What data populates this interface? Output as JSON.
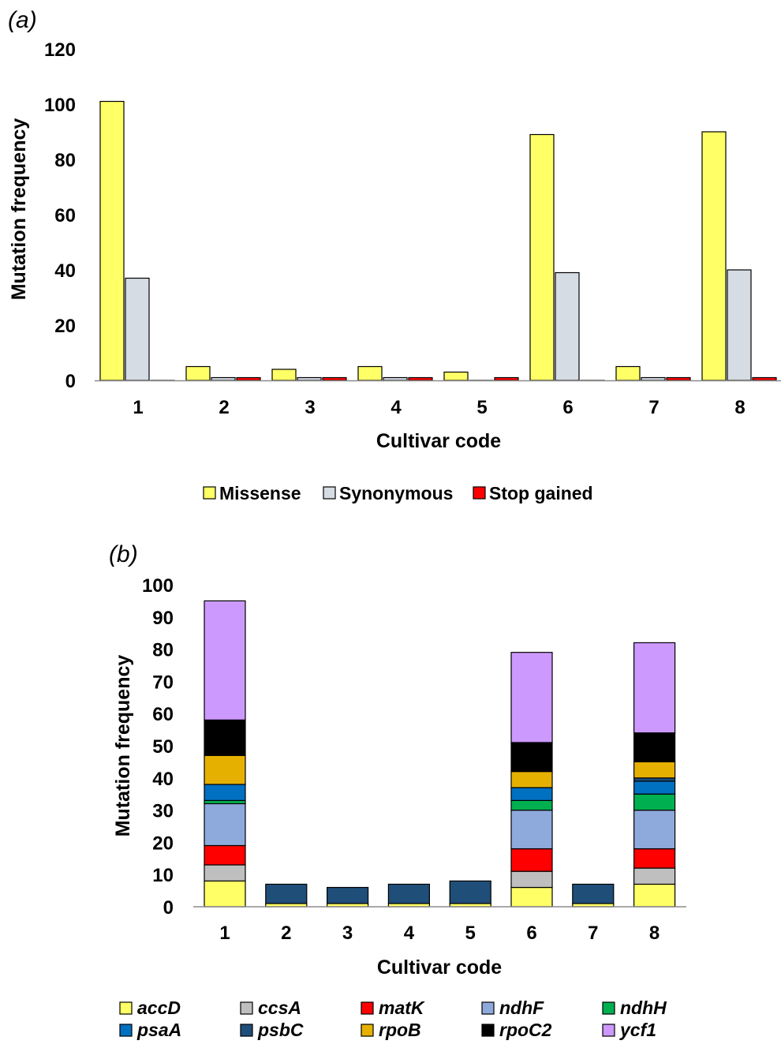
{
  "chart_data": [
    {
      "panel": "(a)",
      "panel_letter": "a",
      "type": "bar",
      "xlabel": "Cultivar code",
      "ylabel": "Mutation frequency",
      "ylim": [
        0,
        120
      ],
      "yticks": [
        0,
        20,
        40,
        60,
        80,
        100,
        120
      ],
      "categories": [
        "1",
        "2",
        "3",
        "4",
        "5",
        "6",
        "7",
        "8"
      ],
      "legend_position": "bottom",
      "series": [
        {
          "name": "Missense",
          "color": "#FFFF66",
          "values": [
            101,
            5,
            4,
            5,
            3,
            89,
            5,
            90
          ]
        },
        {
          "name": "Synonymous",
          "color": "#D6DCE4",
          "values": [
            37,
            1,
            1,
            1,
            0,
            39,
            1,
            40
          ]
        },
        {
          "name": "Stop gained",
          "color": "#FF0000",
          "values": [
            0,
            1,
            1,
            1,
            1,
            0,
            1,
            1
          ]
        }
      ]
    },
    {
      "panel": "(b)",
      "panel_letter": "b",
      "type": "bar",
      "stacked": true,
      "xlabel": "Cultivar code",
      "ylabel": "Mutation frequency",
      "ylim": [
        0,
        100
      ],
      "yticks": [
        0,
        10,
        20,
        30,
        40,
        50,
        60,
        70,
        80,
        90,
        100
      ],
      "categories": [
        "1",
        "2",
        "3",
        "4",
        "5",
        "6",
        "7",
        "8"
      ],
      "legend_position": "bottom",
      "series": [
        {
          "name": "accD",
          "color": "#FFFF66",
          "values": [
            8,
            1,
            1,
            1,
            1,
            6,
            1,
            7
          ]
        },
        {
          "name": "ccsA",
          "color": "#BFBFBF",
          "values": [
            5,
            0,
            0,
            0,
            0,
            5,
            0,
            5
          ]
        },
        {
          "name": "matK",
          "color": "#FF0000",
          "values": [
            6,
            0,
            0,
            0,
            0,
            7,
            0,
            6
          ]
        },
        {
          "name": "ndhF",
          "color": "#8EA9DB",
          "values": [
            13,
            0,
            0,
            0,
            0,
            12,
            0,
            12
          ]
        },
        {
          "name": "ndhH",
          "color": "#00B050",
          "values": [
            1,
            0,
            0,
            0,
            0,
            3,
            0,
            5
          ]
        },
        {
          "name": "psaA",
          "color": "#0070C0",
          "values": [
            5,
            0,
            0,
            0,
            0,
            4,
            0,
            4
          ]
        },
        {
          "name": "psbC",
          "color": "#1F4E79",
          "values": [
            0,
            6,
            5,
            6,
            7,
            0,
            6,
            1
          ]
        },
        {
          "name": "rpoB",
          "color": "#E6B000",
          "values": [
            9,
            0,
            0,
            0,
            0,
            5,
            0,
            5
          ]
        },
        {
          "name": "rpoC2",
          "color": "#000000",
          "values": [
            11,
            0,
            0,
            0,
            0,
            9,
            0,
            9
          ]
        },
        {
          "name": "ycf1",
          "color": "#CC99FF",
          "values": [
            37,
            0,
            0,
            0,
            0,
            28,
            0,
            28
          ]
        }
      ]
    }
  ]
}
